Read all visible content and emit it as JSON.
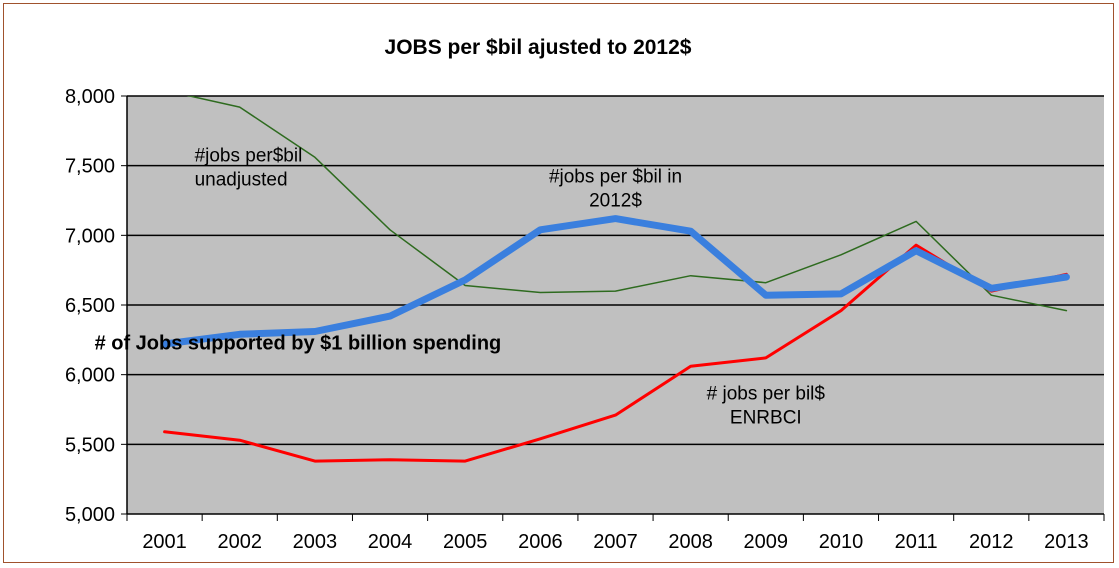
{
  "chart_data": {
    "type": "line",
    "title": "JOBS  per $bil ajusted to 2012$",
    "xlabel": "",
    "ylabel": "",
    "x": [
      "2001",
      "2002",
      "2003",
      "2004",
      "2005",
      "2006",
      "2007",
      "2008",
      "2009",
      "2010",
      "2011",
      "2012",
      "2013"
    ],
    "ylim": [
      5000,
      8000
    ],
    "yticks": [
      5000,
      5500,
      6000,
      6500,
      7000,
      7500,
      8000
    ],
    "ytick_labels": [
      "5,000",
      "5,500",
      "6,000",
      "6,500",
      "7,000",
      "7,500",
      "8,000"
    ],
    "grid": "horizontal",
    "legend": "none",
    "plot_background": "#c0c0c0",
    "series": [
      {
        "name": "",
        "color": "#2e6b1f",
        "width": 1.5,
        "values": [
          8040,
          7920,
          7560,
          7040,
          6640,
          6590,
          6600,
          6710,
          6660,
          6860,
          7100,
          6570,
          6460
        ]
      },
      {
        "name": "",
        "color": "#ff0000",
        "width": 3,
        "values": [
          5590,
          5530,
          5380,
          5390,
          5380,
          5540,
          5710,
          6060,
          6120,
          6460,
          6930,
          6600,
          6720
        ]
      },
      {
        "name": "",
        "color": "#3a7fde",
        "width": 7,
        "values": [
          6220,
          6290,
          6310,
          6420,
          6680,
          7040,
          7120,
          7030,
          6570,
          6580,
          6890,
          6620,
          6700
        ]
      }
    ],
    "annotations": [
      {
        "lines": [
          "#jobs per$bil",
          "unadjusted"
        ],
        "x": "2001",
        "y": 7530,
        "style": "normal"
      },
      {
        "lines": [
          "#jobs per $bil in",
          "2012$"
        ],
        "x": "2007",
        "y": 7380,
        "style": "normal"
      },
      {
        "lines": [
          "# of Jobs supported by $1 billion spending"
        ],
        "x": "2001",
        "y": 6180,
        "style": "bold"
      },
      {
        "lines": [
          "# jobs per bil$",
          "ENRBCI"
        ],
        "x": "2009",
        "y": 5820,
        "style": "normal"
      }
    ]
  }
}
